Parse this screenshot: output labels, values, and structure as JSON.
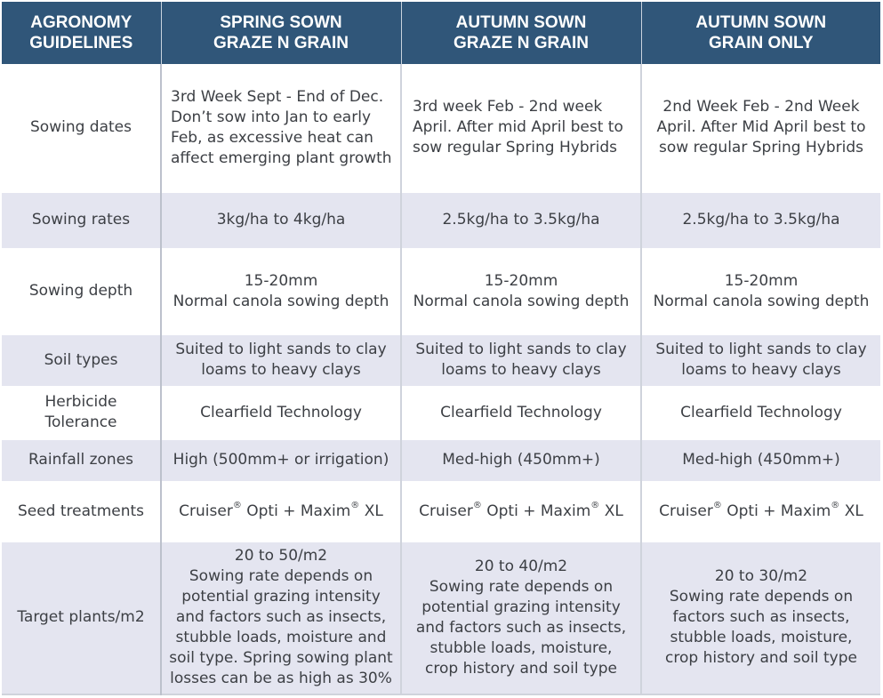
{
  "table": {
    "headers": [
      "AGRONOMY\nGUIDELINES",
      "SPRING SOWN\nGRAZE N GRAIN",
      "AUTUMN SOWN\nGRAZE N GRAIN",
      "AUTUMN SOWN\nGRAIN ONLY"
    ],
    "rows": [
      {
        "label": "Sowing dates",
        "cells": [
          "3rd Week Sept - End of Dec.\nDon’t sow into Jan to early\nFeb, as excessive heat can\naffect emerging plant growth",
          "3rd week Feb - 2nd week\nApril. After mid April best to\nsow regular Spring Hybrids",
          "2nd Week Feb - 2nd Week\nApril. After Mid April best to\nsow regular Spring Hybrids"
        ]
      },
      {
        "label": "Sowing rates",
        "cells": [
          "3kg/ha to 4kg/ha",
          "2.5kg/ha to 3.5kg/ha",
          "2.5kg/ha to 3.5kg/ha"
        ]
      },
      {
        "label": "Sowing depth",
        "cells": [
          "15-20mm\nNormal canola sowing depth",
          "15-20mm\nNormal canola sowing depth",
          "15-20mm\nNormal canola sowing depth"
        ]
      },
      {
        "label": "Soil types",
        "cells": [
          "Suited to light sands to clay\nloams to heavy clays",
          "Suited to light sands to clay\nloams to heavy clays",
          "Suited to light sands to clay\nloams to heavy clays"
        ]
      },
      {
        "label": "Herbicide\nTolerance",
        "cells": [
          "Clearfield Technology",
          "Clearfield Technology",
          "Clearfield Technology"
        ]
      },
      {
        "label": "Rainfall zones",
        "cells": [
          "High (500mm+ or irrigation)",
          "Med-high (450mm+)",
          "Med-high (450mm+)"
        ]
      },
      {
        "label": "Seed treatments",
        "cells": [
          "Cruiser® Opti + Maxim® XL",
          "Cruiser® Opti + Maxim® XL",
          "Cruiser® Opti + Maxim® XL"
        ]
      },
      {
        "label": "Target plants/m2",
        "cells": [
          "20 to 50/m2\nSowing rate depends on\npotential grazing intensity\nand factors such as insects,\nstubble loads, moisture and\nsoil type. Spring sowing plant\nlosses can be as high as 30%",
          "20 to 40/m2\nSowing rate depends on\npotential grazing intensity\nand factors such as insects,\nstubble loads, moisture,\ncrop history and soil type",
          "20 to 30/m2\nSowing rate depends on\nfactors such as insects,\nstubble loads, moisture,\ncrop history and soil type"
        ]
      }
    ]
  },
  "colors": {
    "header_bg": "#305679",
    "header_text": "#ffffff",
    "band_row_bg": "#e4e5f0",
    "body_text": "#3c3f44"
  }
}
